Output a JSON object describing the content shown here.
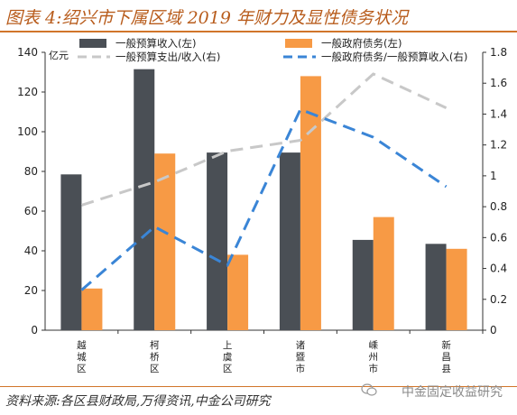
{
  "title": "图表 4:绍兴市下属区域 2019 年财力及显性债务状况",
  "source": "资料来源:各区县财政局,万得资讯,中金公司研究",
  "watermark": "中金固定收益研究",
  "colors": {
    "revenue": "#4a4f55",
    "debt": "#f79a45",
    "expense_ratio": "#c8c8c8",
    "debt_ratio": "#3a85d6",
    "accent": "#d1752a"
  },
  "chart_data": {
    "type": "bar",
    "categories": [
      "越城区",
      "柯桥区",
      "上虞区",
      "诸暨市",
      "嵊州市",
      "新昌县"
    ],
    "ylabel": "亿元",
    "ylim": [
      0,
      140
    ],
    "y_ticks": [
      0,
      20,
      40,
      60,
      80,
      100,
      120,
      140
    ],
    "y2lim": [
      0,
      1.8
    ],
    "y2_ticks": [
      "0",
      "0.2",
      "0.4",
      "0.6",
      "0.8",
      "1",
      "1.2",
      "1.4",
      "1.6",
      "1.8"
    ],
    "legend_position": "top",
    "grid": false,
    "series": [
      {
        "name": "一般预算收入(左)",
        "type": "bar",
        "axis": "left",
        "values": [
          78.5,
          131.5,
          89.5,
          89.5,
          45.5,
          43.5
        ]
      },
      {
        "name": "一般政府债务(左)",
        "type": "bar",
        "axis": "left",
        "values": [
          21,
          89,
          38,
          128,
          57,
          41
        ]
      },
      {
        "name": "一般预算支出/收入(右)",
        "type": "line",
        "style": "dashed",
        "axis": "right",
        "values": [
          0.81,
          0.96,
          1.16,
          1.23,
          1.66,
          1.44
        ]
      },
      {
        "name": "一般政府债务/一般预算收入(右)",
        "type": "line",
        "style": "dashed",
        "axis": "right",
        "values": [
          0.26,
          0.67,
          0.42,
          1.43,
          1.25,
          0.93
        ]
      }
    ]
  }
}
